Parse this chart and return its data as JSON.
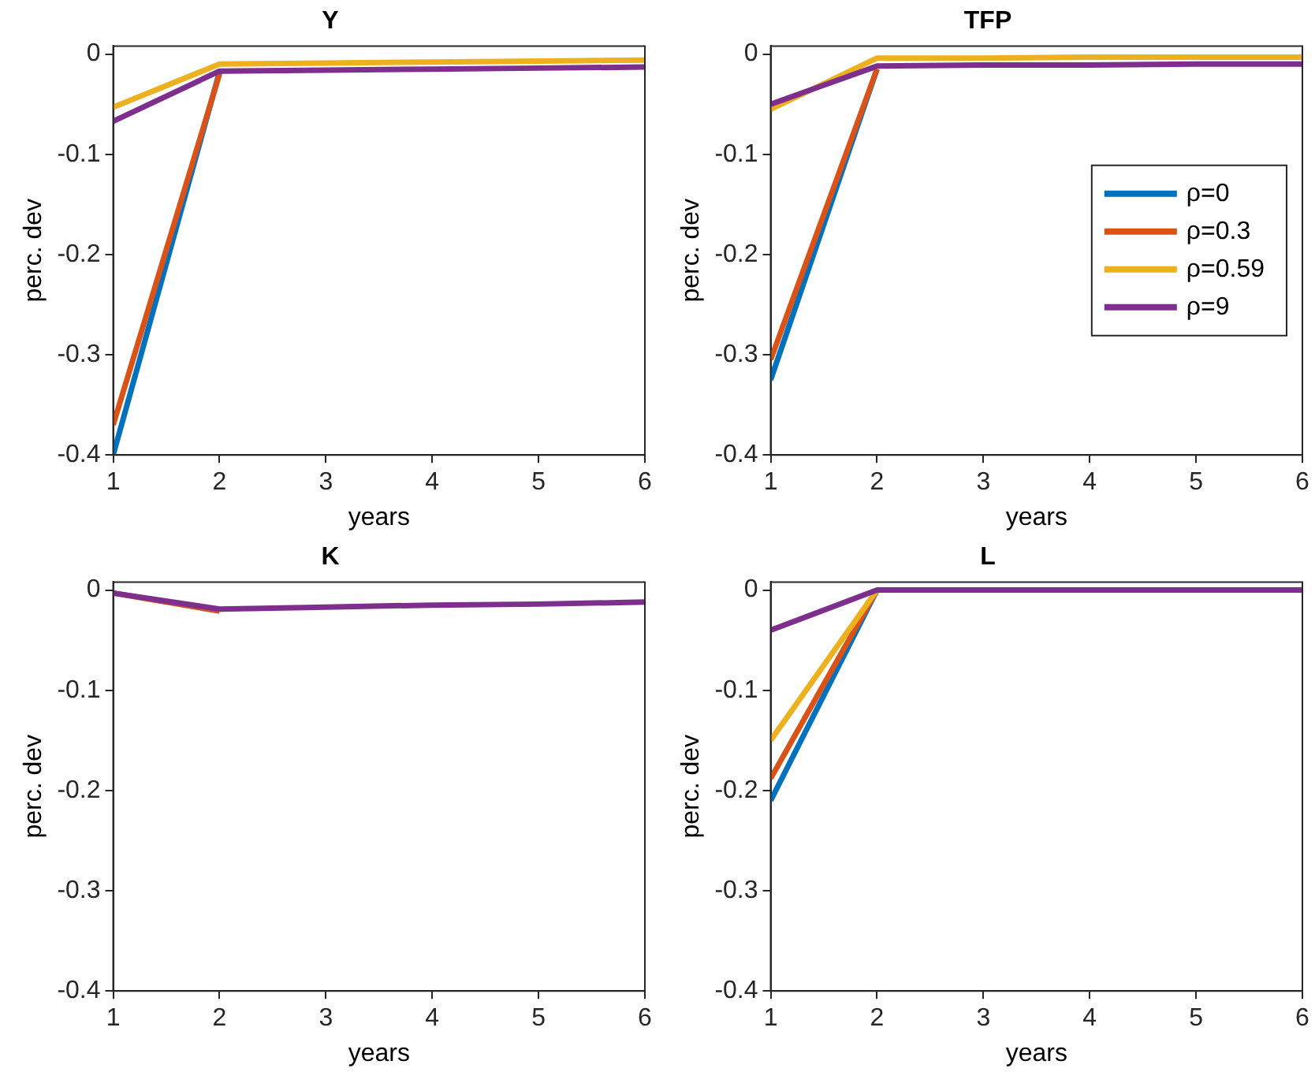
{
  "chart_data": [
    {
      "type": "line",
      "title": "Y",
      "xlabel": "years",
      "ylabel": "perc. dev",
      "x": [
        1,
        2,
        3,
        4,
        5,
        6
      ],
      "xlim": [
        1,
        6
      ],
      "xticks": [
        1,
        2,
        3,
        4,
        5,
        6
      ],
      "ylim": [
        -0.4,
        0.008
      ],
      "yticks": [
        -0.4,
        -0.3,
        -0.2,
        -0.1,
        0
      ],
      "grid": false,
      "legend": false,
      "series": [
        {
          "color": "#0072bd",
          "values": [
            -0.4,
            -0.018,
            null,
            null,
            null,
            null
          ]
        },
        {
          "color": "#d95319",
          "values": [
            -0.37,
            -0.02,
            null,
            null,
            null,
            null
          ]
        },
        {
          "color": "#edb120",
          "values": [
            -0.053,
            -0.01,
            -0.009,
            -0.008,
            -0.007,
            -0.006
          ]
        },
        {
          "color": "#7e2f8e",
          "values": [
            -0.067,
            -0.017,
            -0.016,
            -0.015,
            -0.014,
            -0.013
          ]
        }
      ]
    },
    {
      "type": "line",
      "title": "TFP",
      "xlabel": "years",
      "ylabel": "perc. dev",
      "x": [
        1,
        2,
        3,
        4,
        5,
        6
      ],
      "xlim": [
        1,
        6
      ],
      "xticks": [
        1,
        2,
        3,
        4,
        5,
        6
      ],
      "ylim": [
        -0.4,
        0.008
      ],
      "yticks": [
        -0.4,
        -0.3,
        -0.2,
        -0.1,
        0
      ],
      "grid": false,
      "legend": "right",
      "series": [
        {
          "name": "ρ=0",
          "color": "#0072bd",
          "values": [
            -0.325,
            -0.015,
            null,
            null,
            null,
            null
          ]
        },
        {
          "name": "ρ=0.3",
          "color": "#d95319",
          "values": [
            -0.305,
            -0.015,
            null,
            null,
            null,
            null
          ]
        },
        {
          "name": "ρ=0.59",
          "color": "#edb120",
          "values": [
            -0.055,
            -0.004,
            -0.004,
            -0.003,
            -0.003,
            -0.003
          ]
        },
        {
          "name": "ρ=9",
          "color": "#7e2f8e",
          "values": [
            -0.05,
            -0.012,
            -0.011,
            -0.011,
            -0.01,
            -0.01
          ]
        }
      ]
    },
    {
      "type": "line",
      "title": "K",
      "xlabel": "years",
      "ylabel": "perc. dev",
      "x": [
        1,
        2,
        3,
        4,
        5,
        6
      ],
      "xlim": [
        1,
        6
      ],
      "xticks": [
        1,
        2,
        3,
        4,
        5,
        6
      ],
      "ylim": [
        -0.4,
        0.008
      ],
      "yticks": [
        -0.4,
        -0.3,
        -0.2,
        -0.1,
        0
      ],
      "grid": false,
      "legend": false,
      "series": [
        {
          "color": "#0072bd",
          "values": [
            null,
            null,
            null,
            null,
            null,
            null
          ]
        },
        {
          "color": "#d95319",
          "values": [
            -0.003,
            -0.021,
            null,
            null,
            null,
            null
          ]
        },
        {
          "color": "#edb120",
          "values": [
            null,
            null,
            null,
            null,
            null,
            null
          ]
        },
        {
          "color": "#7e2f8e",
          "values": [
            -0.003,
            -0.019,
            -0.017,
            -0.015,
            -0.014,
            -0.012
          ]
        }
      ]
    },
    {
      "type": "line",
      "title": "L",
      "xlabel": "years",
      "ylabel": "perc. dev",
      "x": [
        1,
        2,
        3,
        4,
        5,
        6
      ],
      "xlim": [
        1,
        6
      ],
      "xticks": [
        1,
        2,
        3,
        4,
        5,
        6
      ],
      "ylim": [
        -0.4,
        0.008
      ],
      "yticks": [
        -0.4,
        -0.3,
        -0.2,
        -0.1,
        0
      ],
      "grid": false,
      "legend": false,
      "series": [
        {
          "color": "#0072bd",
          "values": [
            -0.21,
            0,
            null,
            null,
            null,
            null
          ]
        },
        {
          "color": "#d95319",
          "values": [
            -0.188,
            0,
            null,
            null,
            null,
            null
          ]
        },
        {
          "color": "#edb120",
          "values": [
            -0.15,
            0,
            null,
            null,
            null,
            null
          ]
        },
        {
          "color": "#7e2f8e",
          "values": [
            -0.04,
            0,
            0,
            0,
            0,
            0
          ]
        }
      ]
    }
  ]
}
